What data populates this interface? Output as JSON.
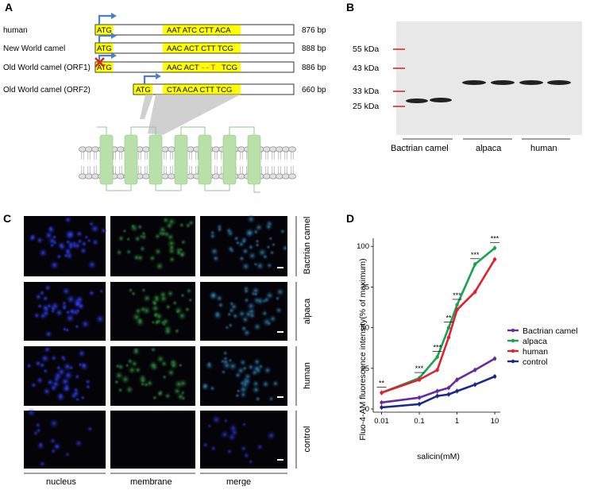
{
  "panels": {
    "A": "A",
    "B": "B",
    "C": "C",
    "D": "D"
  },
  "panel_a": {
    "rows": [
      {
        "label": "human",
        "atg": "ATG",
        "seq": "AAT ATC CTT ACA",
        "bp": "876 bp"
      },
      {
        "label": "New World camel",
        "atg": "ATG",
        "seq": "AAC ACT CTT TCG",
        "bp": "888 bp"
      },
      {
        "label": "Old World camel (ORF1)",
        "atg": "ATG",
        "seq": "AAC ACT",
        "seq_gap": "- - T",
        "seq_tail": "TCG",
        "bp": "886 bp"
      },
      {
        "label": "Old World camel (ORF2)",
        "atg": "ATG",
        "seq": "CTA ACA CTT TCG",
        "bp": "660 bp"
      }
    ],
    "colors": {
      "highlight": "#ffff00",
      "arrow": "#4a7fd0",
      "mutation": "#e02020",
      "helix": "#b8e0a8",
      "helix_line": "#8fc98a"
    }
  },
  "panel_b": {
    "markers": [
      "55 kDa",
      "43 kDa",
      "33 kDa",
      "25 kDa"
    ],
    "lanes": [
      "Bactrian camel",
      "alpaca",
      "human"
    ],
    "colors": {
      "marker": "#d03030",
      "band": "#222222"
    }
  },
  "panel_c": {
    "rows": [
      "Bactrian camel",
      "alpaca",
      "human",
      "control"
    ],
    "columns": [
      "nucleus",
      "membrane",
      "merge"
    ]
  },
  "chart_data": {
    "type": "line",
    "xlabel": "salicin(mM)",
    "ylabel": "Fluo-4-AM fluorescence intensity(% of maximum)",
    "x_scale": "log",
    "x": [
      0.01,
      0.1,
      0.3,
      0.6,
      1,
      3,
      10
    ],
    "xticks": [
      "0.01",
      "0.1",
      "1",
      "10"
    ],
    "xtick_values": [
      0.01,
      0.1,
      1,
      10
    ],
    "yticks": [
      "0",
      "25",
      "50",
      "75",
      "100"
    ],
    "ylim": [
      0,
      105
    ],
    "series": [
      {
        "name": "Bactrian camel",
        "color": "#6a2a9a",
        "values": [
          4,
          7,
          11,
          13,
          18,
          24,
          31
        ]
      },
      {
        "name": "alpaca",
        "color": "#1aa050",
        "values": [
          10,
          19,
          32,
          50,
          64,
          89,
          99
        ]
      },
      {
        "name": "human",
        "color": "#e02030",
        "values": [
          10,
          18,
          24,
          44,
          61,
          72,
          92
        ]
      },
      {
        "name": "control",
        "color": "#1a2a8a",
        "values": [
          1,
          3,
          8,
          9,
          11,
          15,
          20
        ]
      }
    ],
    "significance": [
      {
        "x": 0.01,
        "label": "**"
      },
      {
        "x": 0.1,
        "label": "***"
      },
      {
        "x": 0.3,
        "label": "***"
      },
      {
        "x": 0.6,
        "label": "**"
      },
      {
        "x": 1,
        "label": "***"
      },
      {
        "x": 3,
        "label": "***"
      },
      {
        "x": 10,
        "label": "***"
      }
    ],
    "legend_position": "right"
  }
}
